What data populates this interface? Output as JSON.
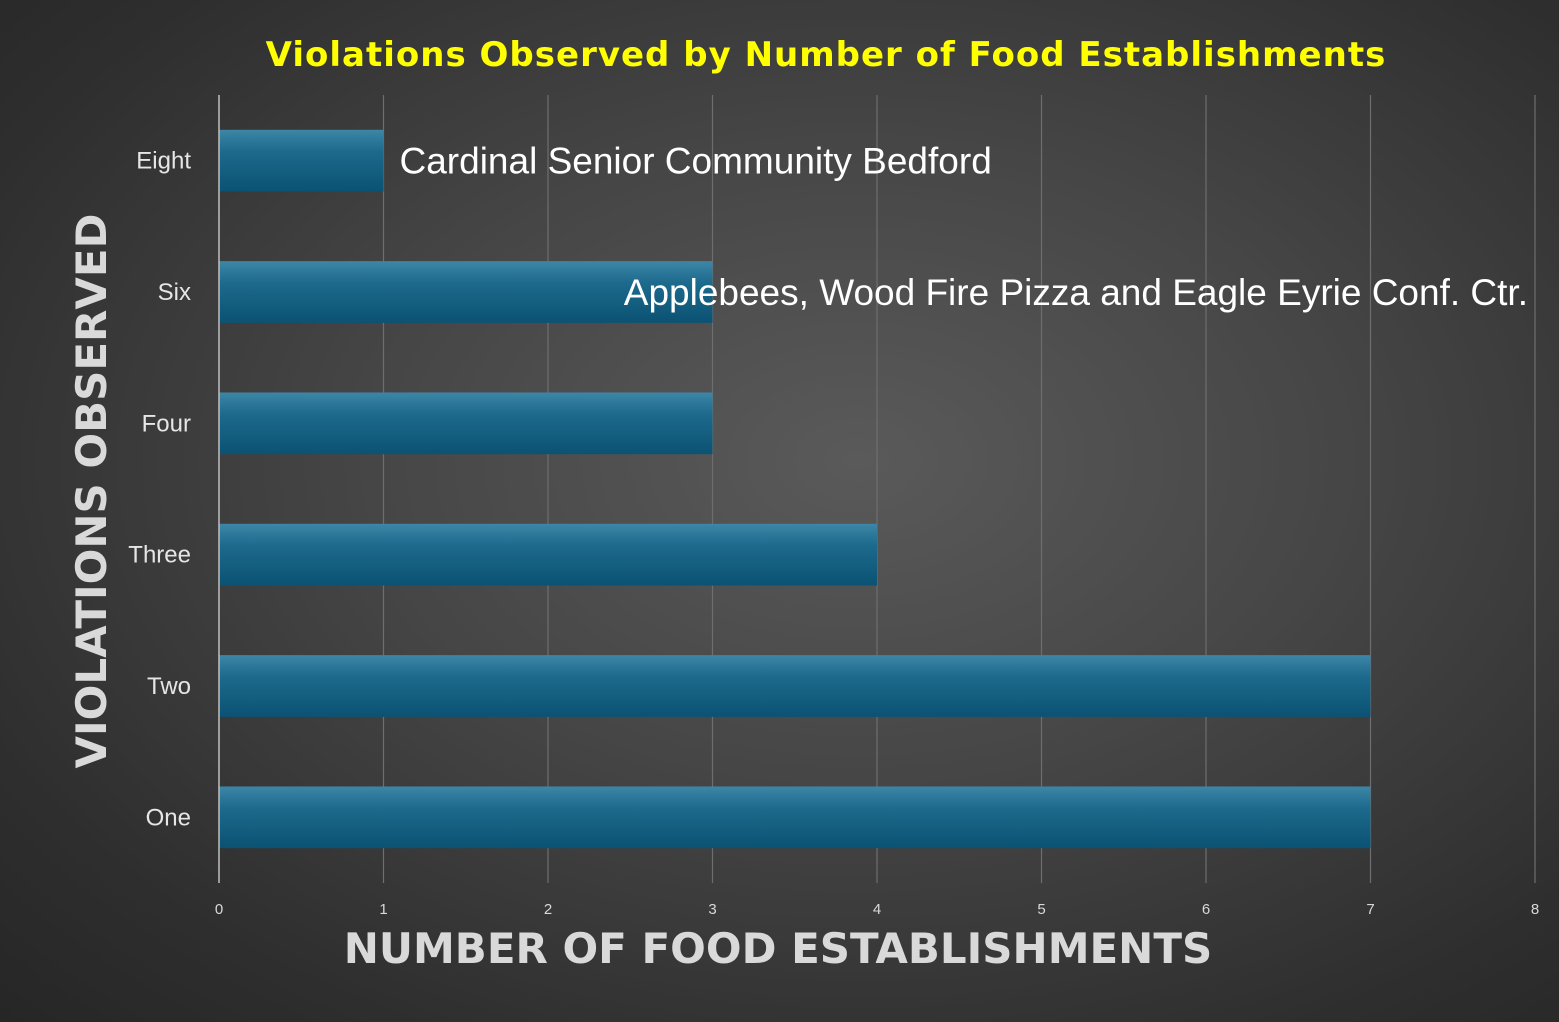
{
  "chart_data": {
    "type": "bar",
    "orientation": "horizontal",
    "title": "Violations Observed by Number of Food Establishments",
    "xlabel": "NUMBER OF FOOD ESTABLISHMENTS",
    "ylabel": "VIOLATIONS OBSERVED",
    "categories": [
      "Eight",
      "Six",
      "Four",
      "Three",
      "Two",
      "One"
    ],
    "values": [
      1,
      3,
      3,
      4,
      7,
      7
    ],
    "xlim": [
      0,
      8
    ],
    "xticks": [
      "0",
      "1",
      "2",
      "3",
      "4",
      "5",
      "6",
      "7",
      "8"
    ],
    "grid": "vertical",
    "annotations": [
      {
        "category": "Eight",
        "text": "Cardinal Senior Community Bedford"
      },
      {
        "category": "Six",
        "text": "Applebees, Wood Fire Pizza and Eagle Eyrie Conf. Ctr."
      }
    ],
    "colors": {
      "bar": "#15607f",
      "title": "#ffff00",
      "axis_title": "#d9d9d9",
      "background": "#404040"
    }
  }
}
